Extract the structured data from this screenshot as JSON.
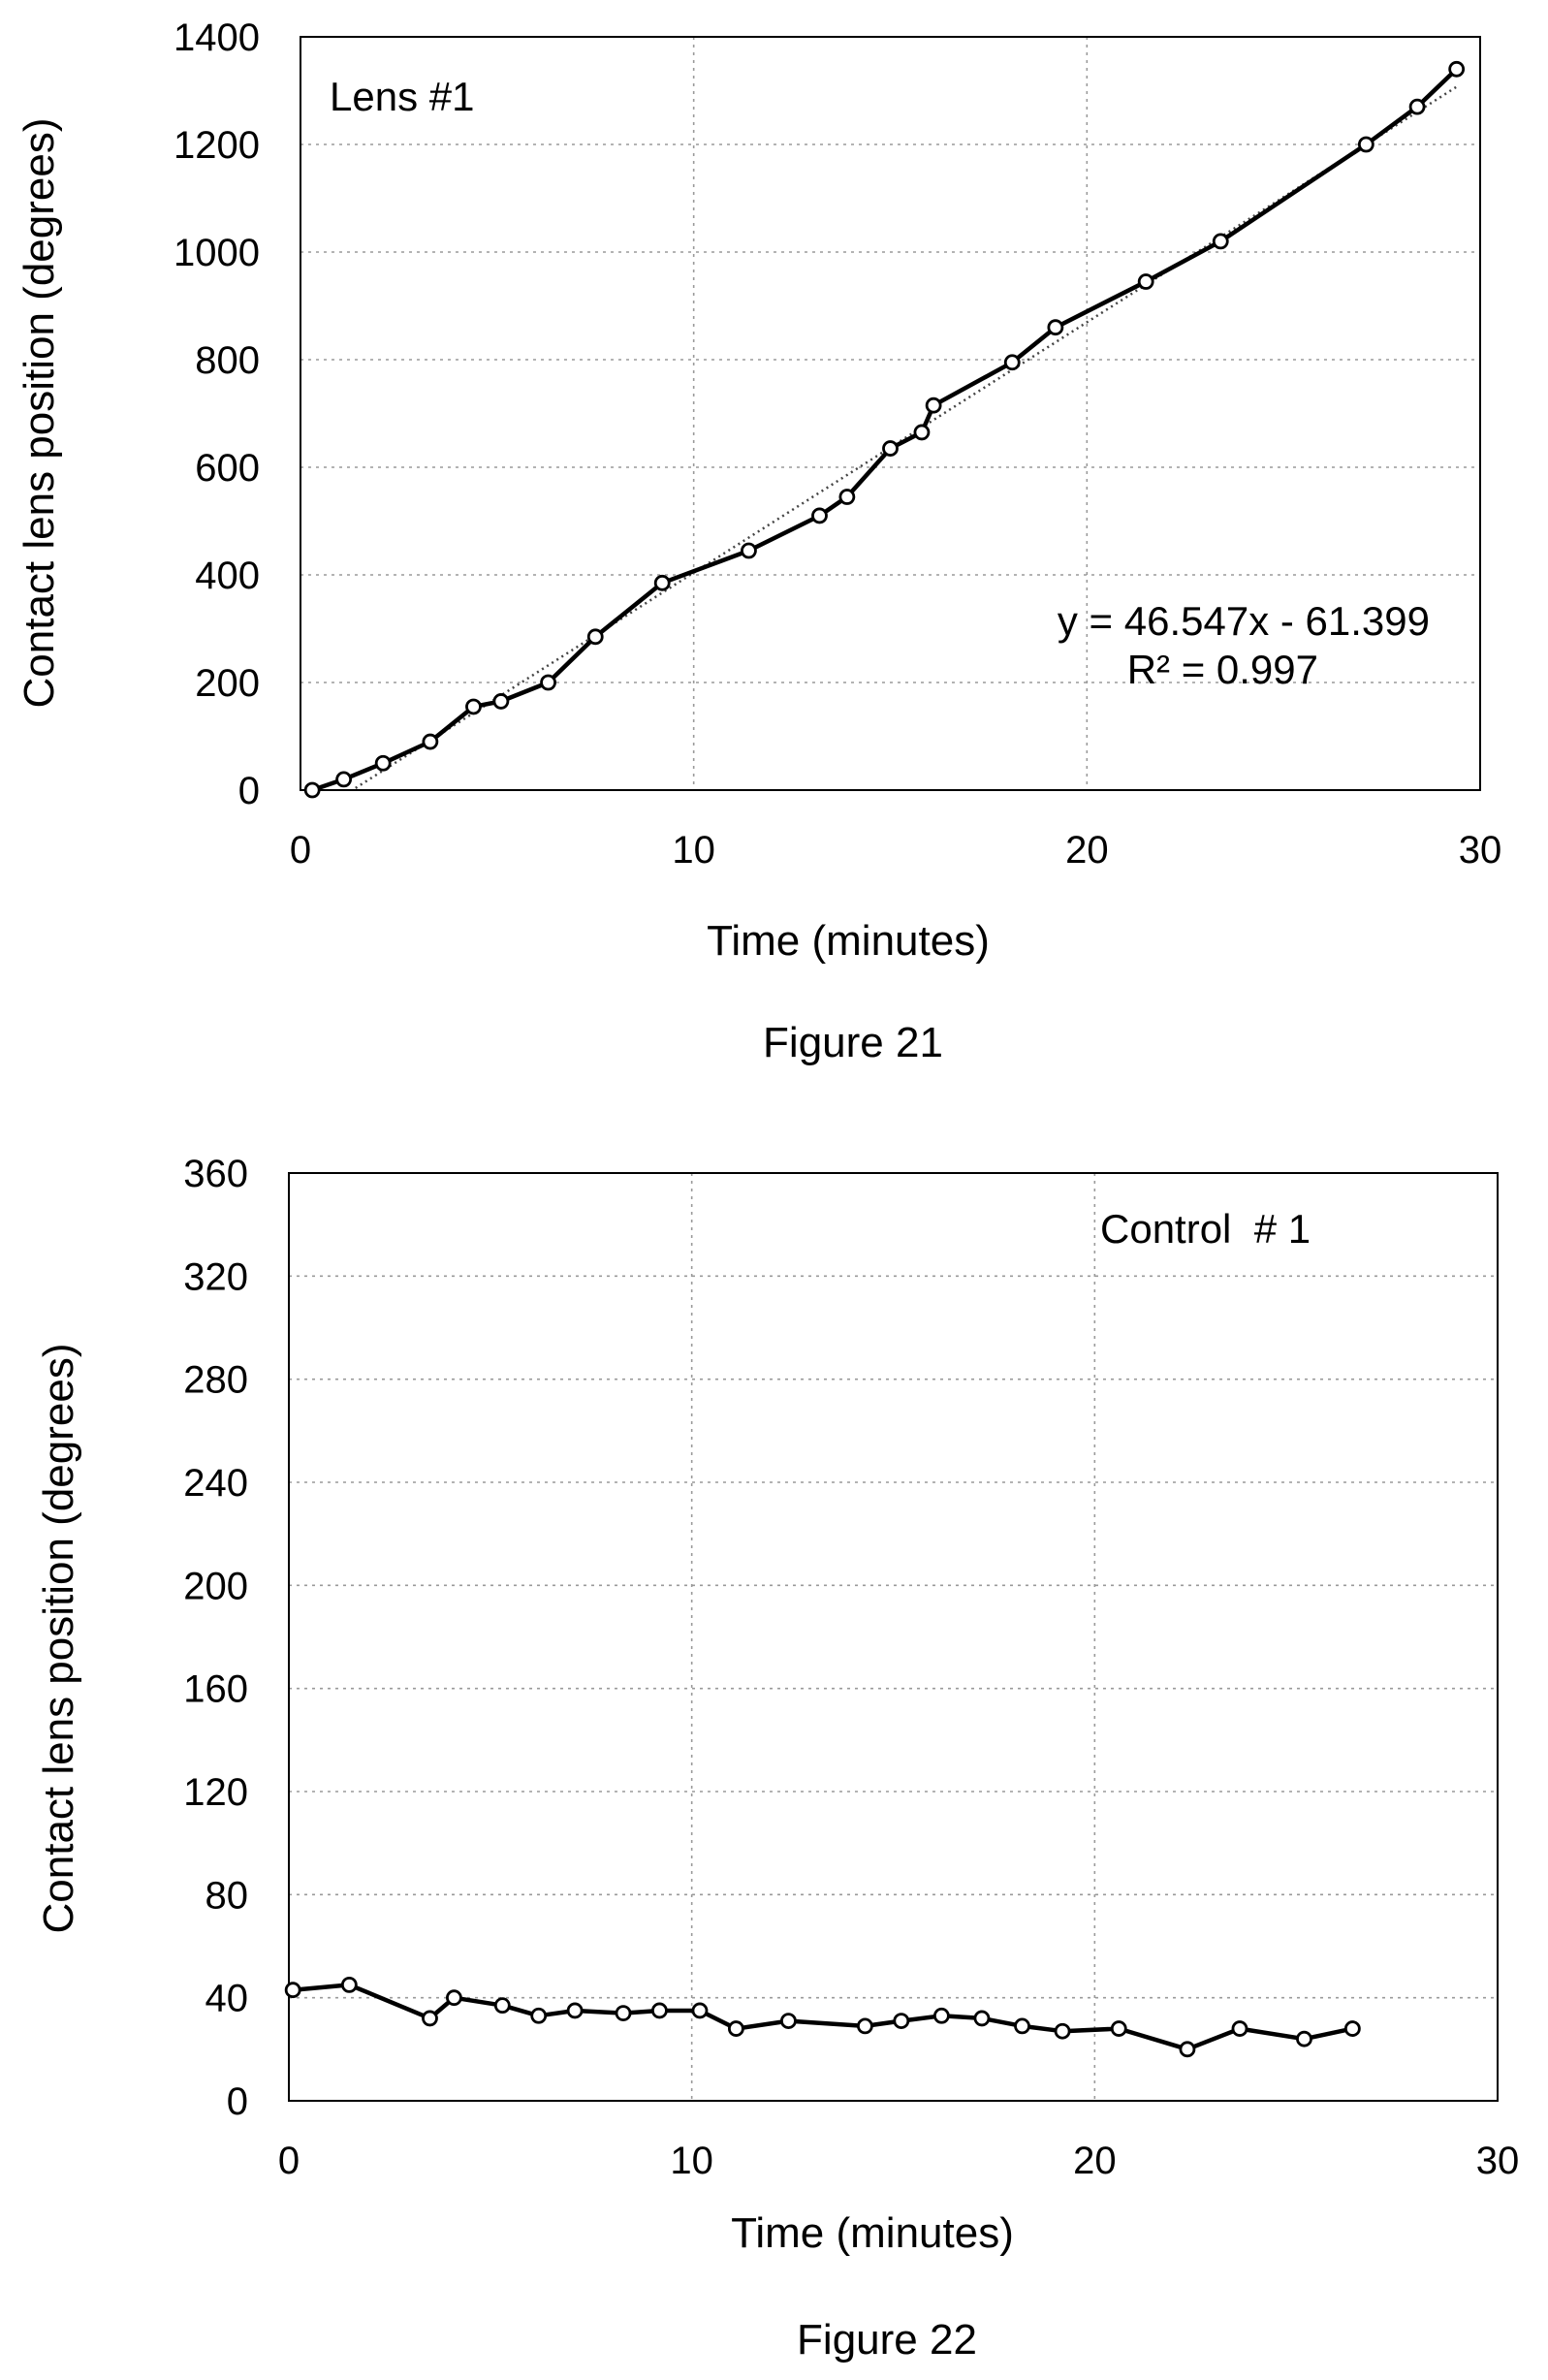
{
  "chart_data": [
    {
      "type": "line",
      "caption": "Figure 21",
      "xlabel": "Time (minutes)",
      "ylabel": "Contact lens position (degrees)",
      "xlim": [
        0,
        30
      ],
      "ylim": [
        0,
        1400
      ],
      "xticks": [
        0,
        10,
        20,
        30
      ],
      "yticks": [
        0,
        200,
        400,
        600,
        800,
        1000,
        1200,
        1400
      ],
      "grid": true,
      "series": [
        {
          "name": "Lens #1",
          "x": [
            0.3,
            1.1,
            2.1,
            3.3,
            4.4,
            5.1,
            6.3,
            7.5,
            9.2,
            11.4,
            13.2,
            13.9,
            15.0,
            15.8,
            16.1,
            18.1,
            19.2,
            21.5,
            23.4,
            27.1,
            28.4,
            29.4
          ],
          "y": [
            0,
            20,
            50,
            90,
            155,
            165,
            200,
            285,
            385,
            445,
            510,
            545,
            635,
            665,
            715,
            795,
            860,
            945,
            1020,
            1200,
            1270,
            1340
          ]
        }
      ],
      "trendline": {
        "slope": 46.547,
        "intercept": -61.399,
        "equation": "y = 46.547x - 61.399",
        "r_squared": "R² = 0.997"
      }
    },
    {
      "type": "line",
      "caption": "Figure 22",
      "xlabel": "Time (minutes)",
      "ylabel": "Contact lens position (degrees)",
      "xlim": [
        0,
        30
      ],
      "ylim": [
        0,
        360
      ],
      "xticks": [
        0,
        10,
        20,
        30
      ],
      "yticks": [
        0,
        40,
        80,
        120,
        160,
        200,
        240,
        280,
        320,
        360
      ],
      "grid": true,
      "series": [
        {
          "name": "Control  # 1",
          "x": [
            0.1,
            1.5,
            3.5,
            4.1,
            5.3,
            6.2,
            7.1,
            8.3,
            9.2,
            10.2,
            11.1,
            12.4,
            14.3,
            15.2,
            16.2,
            17.2,
            18.2,
            19.2,
            20.6,
            22.3,
            23.6,
            25.2,
            26.4
          ],
          "y": [
            43,
            45,
            32,
            40,
            37,
            33,
            35,
            34,
            35,
            35,
            28,
            31,
            29,
            31,
            33,
            32,
            29,
            27,
            28,
            20,
            28,
            24,
            28
          ]
        }
      ]
    }
  ]
}
